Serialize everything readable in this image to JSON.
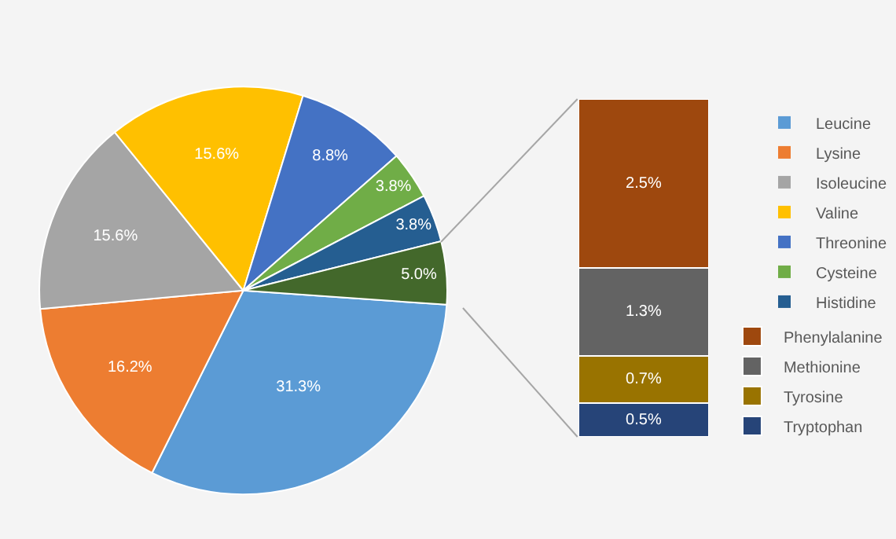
{
  "chart_data": [
    {
      "type": "pie",
      "categories": [
        "Leucine",
        "Lysine",
        "Isoleucine",
        "Valine",
        "Threonine",
        "Cysteine",
        "Histidine",
        null
      ],
      "values": [
        31.3,
        16.2,
        15.6,
        15.6,
        8.8,
        3.8,
        3.8,
        5.0
      ],
      "colors": [
        "#5b9bd5",
        "#ed7d31",
        "#a5a5a5",
        "#ffc000",
        "#4472c4",
        "#70ad47",
        "#255e91",
        "#43682b"
      ],
      "value_labels": [
        "31.3%",
        "16.2%",
        "15.6%",
        "15.6%",
        "8.8%",
        "3.8%",
        "3.8%",
        "5.0%"
      ],
      "legend": "right"
    },
    {
      "type": "bar",
      "stacked": true,
      "categories": [
        null
      ],
      "legend": "right",
      "series": [
        {
          "name": "Tryptophan",
          "color": "#264478",
          "values": [
            0.5
          ],
          "value_labels": [
            "0.5%"
          ]
        },
        {
          "name": "Tyrosine",
          "color": "#997300",
          "values": [
            0.7
          ],
          "value_labels": [
            "0.7%"
          ]
        },
        {
          "name": "Methionine",
          "color": "#636363",
          "values": [
            1.3
          ],
          "value_labels": [
            "1.3%"
          ]
        },
        {
          "name": "Phenylalanine",
          "color": "#9e480e",
          "values": [
            2.5
          ],
          "value_labels": [
            "2.5%"
          ]
        }
      ]
    }
  ]
}
